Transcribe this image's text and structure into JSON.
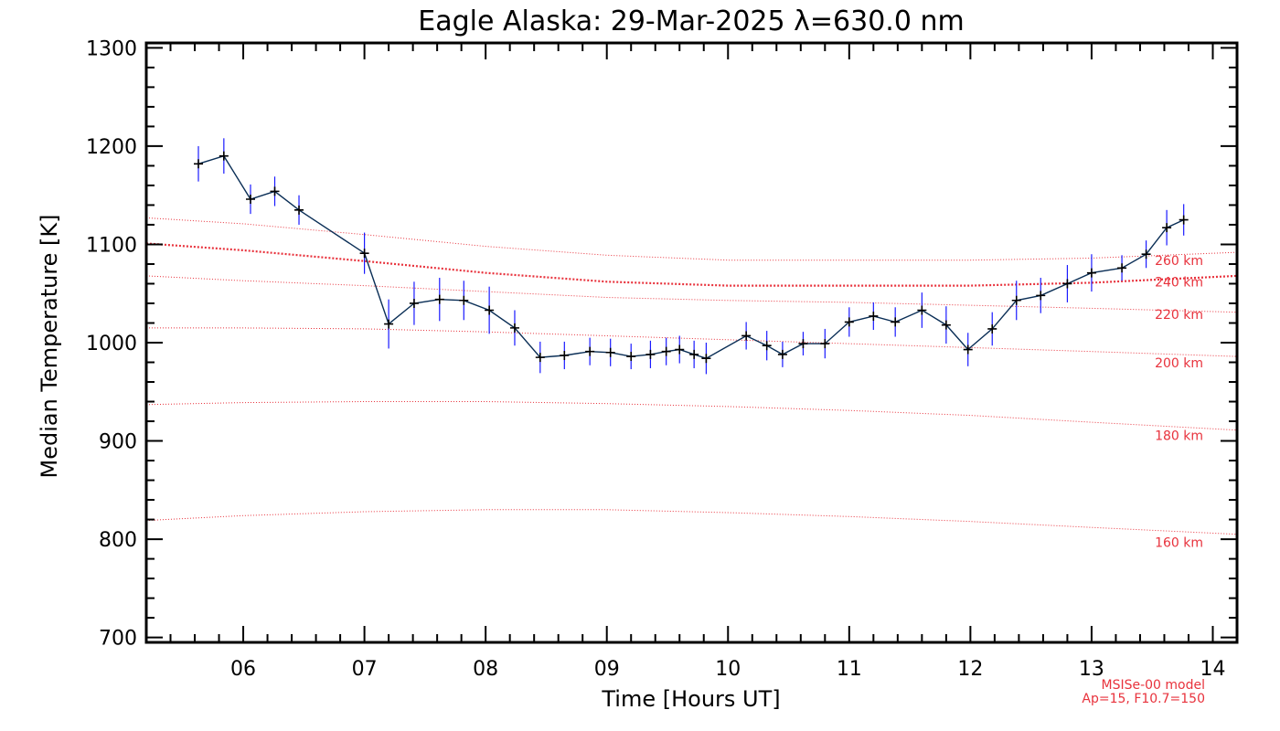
{
  "chart_data": {
    "type": "line",
    "title": "Eagle Alaska: 29-Mar-2025 λ=630.0 nm",
    "xlabel": "Time [Hours UT]",
    "ylabel": "Median Temperature [K]",
    "xlim": [
      5.2,
      14.2
    ],
    "ylim": [
      695,
      1305
    ],
    "xticks": [
      6,
      7,
      8,
      9,
      10,
      11,
      12,
      13,
      14
    ],
    "xtick_labels": [
      "06",
      "07",
      "08",
      "09",
      "10",
      "11",
      "12",
      "13",
      "14"
    ],
    "yticks": [
      700,
      800,
      900,
      1000,
      1100,
      1200,
      1300
    ],
    "ytick_labels": [
      "700",
      "800",
      "900",
      "1000",
      "1100",
      "1200",
      "1300"
    ],
    "series": [
      {
        "name": "Median temperature",
        "color": "#0a2e56",
        "error_color": "#1a1aff",
        "x": [
          5.63,
          5.84,
          6.06,
          6.26,
          6.46,
          7.0,
          7.2,
          7.41,
          7.62,
          7.82,
          8.03,
          8.24,
          8.45,
          8.65,
          8.86,
          9.03,
          9.2,
          9.36,
          9.49,
          9.6,
          9.72,
          9.82,
          10.15,
          10.32,
          10.45,
          10.62,
          10.8,
          11.0,
          11.2,
          11.38,
          11.6,
          11.8,
          11.98,
          12.18,
          12.38,
          12.58,
          12.8,
          13.0,
          13.25,
          13.45,
          13.62,
          13.76
        ],
        "y": [
          1182,
          1190,
          1146,
          1154,
          1135,
          1091,
          1019,
          1040,
          1044,
          1043,
          1033,
          1015,
          985,
          987,
          991,
          990,
          986,
          988,
          991,
          993,
          988,
          984,
          1007,
          997,
          988,
          999,
          999,
          1021,
          1027,
          1021,
          1033,
          1018,
          993,
          1014,
          1043,
          1048,
          1060,
          1071,
          1076,
          1090,
          1117,
          1125
        ],
        "err": [
          18,
          18,
          15,
          15,
          15,
          21,
          25,
          22,
          22,
          20,
          24,
          18,
          16,
          14,
          14,
          14,
          13,
          14,
          14,
          14,
          14,
          16,
          14,
          15,
          13,
          12,
          15,
          15,
          14,
          15,
          18,
          19,
          17,
          17,
          20,
          18,
          19,
          19,
          13,
          14,
          18,
          16
        ]
      }
    ],
    "model_curves": [
      {
        "label": "260 km",
        "x": [
          5.2,
          6.0,
          7.0,
          8.0,
          9.0,
          10.0,
          11.0,
          12.0,
          13.0,
          14.2
        ],
        "y": [
          1127,
          1121,
          1110,
          1098,
          1089,
          1084,
          1084,
          1084,
          1086,
          1092
        ],
        "emphasis": false
      },
      {
        "label": "240 km",
        "x": [
          5.2,
          6.0,
          7.0,
          8.0,
          9.0,
          10.0,
          11.0,
          12.0,
          13.0,
          14.2
        ],
        "y": [
          1101,
          1094,
          1083,
          1071,
          1062,
          1058,
          1058,
          1058,
          1061,
          1068
        ],
        "emphasis": true
      },
      {
        "label": "220 km",
        "x": [
          5.2,
          6.0,
          7.0,
          8.0,
          9.0,
          10.0,
          11.0,
          12.0,
          13.0,
          14.2
        ],
        "y": [
          1068,
          1063,
          1058,
          1052,
          1046,
          1043,
          1041,
          1038,
          1035,
          1031
        ],
        "emphasis": false
      },
      {
        "label": "200 km",
        "x": [
          5.2,
          6.0,
          7.0,
          8.0,
          9.0,
          10.0,
          11.0,
          12.0,
          13.0,
          14.2
        ],
        "y": [
          1015,
          1015,
          1014,
          1011,
          1007,
          1003,
          999,
          995,
          991,
          986
        ],
        "emphasis": false
      },
      {
        "label": "180 km",
        "x": [
          5.2,
          6.0,
          7.0,
          8.0,
          9.0,
          10.0,
          11.0,
          12.0,
          13.0,
          14.2
        ],
        "y": [
          937,
          939,
          940,
          940,
          938,
          935,
          931,
          926,
          919,
          911
        ],
        "emphasis": false
      },
      {
        "label": "160 km",
        "x": [
          5.2,
          6.0,
          7.0,
          8.0,
          9.0,
          10.0,
          11.0,
          12.0,
          13.0,
          14.2
        ],
        "y": [
          819,
          824,
          828,
          830,
          830,
          827,
          823,
          818,
          812,
          805
        ],
        "emphasis": false
      }
    ],
    "altitude_labels": [
      {
        "text": "260 km",
        "y": 1079
      },
      {
        "text": "240 km",
        "y": 1057
      },
      {
        "text": "220 km",
        "y": 1024
      },
      {
        "text": "200 km",
        "y": 975
      },
      {
        "text": "180 km",
        "y": 901
      },
      {
        "text": "160 km",
        "y": 792
      }
    ],
    "model_note": [
      "MSISe-00 model",
      "Ap=15, F10.7=150"
    ],
    "colors": {
      "axis": "#000000",
      "model": "#e8323c",
      "series_line": "#0a2e56",
      "error_bar": "#1a1aff"
    }
  }
}
